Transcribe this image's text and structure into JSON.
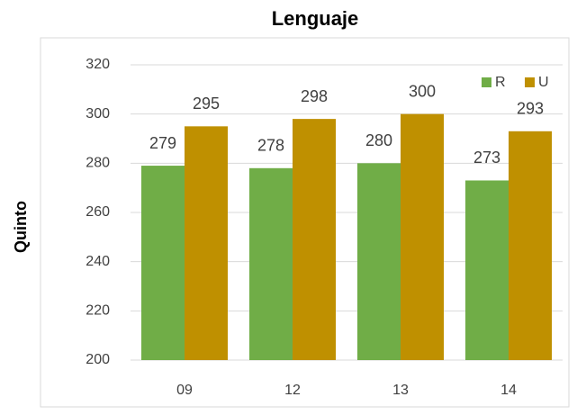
{
  "chart_data": {
    "type": "bar",
    "title": "Lenguaje",
    "y_label": "Quinto",
    "categories": [
      "09",
      "12",
      "13",
      "14"
    ],
    "series": [
      {
        "name": "R",
        "color": "#70ad47",
        "values": [
          279,
          278,
          280,
          273
        ]
      },
      {
        "name": "U",
        "color": "#bf9000",
        "values": [
          295,
          298,
          300,
          293
        ]
      }
    ],
    "ylim": [
      200,
      320
    ],
    "yticks": [
      200,
      220,
      240,
      260,
      280,
      300,
      320
    ],
    "grid": true,
    "legend": "top-right"
  }
}
